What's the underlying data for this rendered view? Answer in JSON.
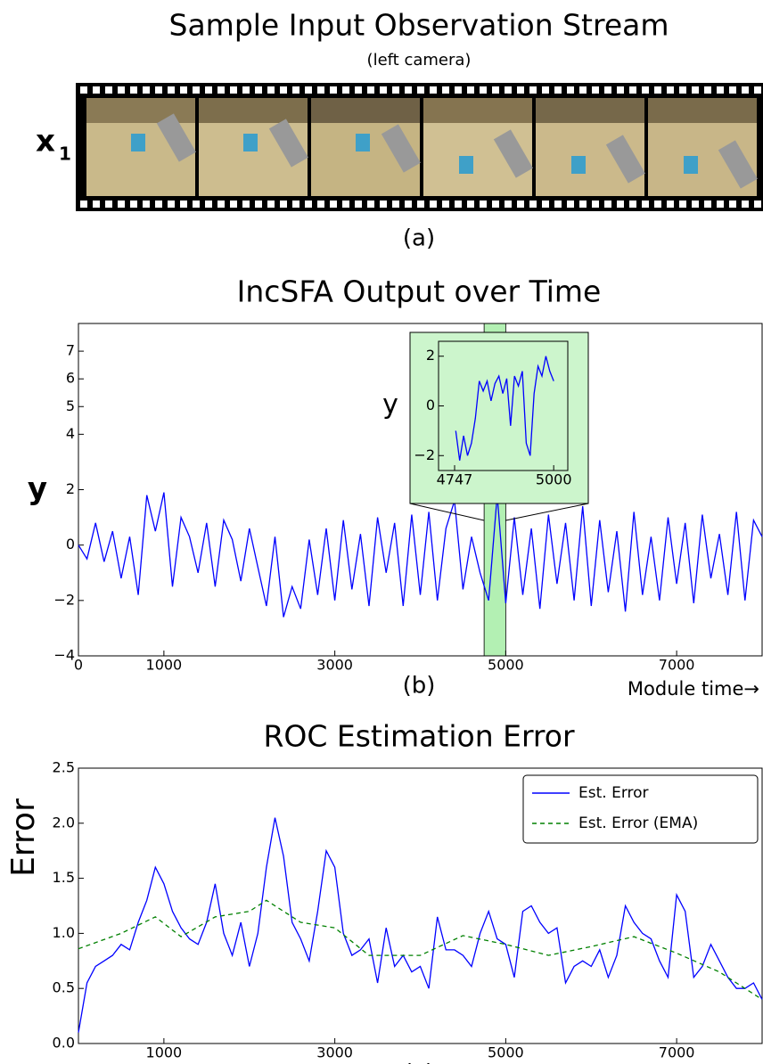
{
  "panel_a": {
    "title": "Sample Input Observation Stream",
    "subtitle": "(left camera)",
    "row_label": "x",
    "row_label_sub": "1",
    "caption": "(a)"
  },
  "chart_data": [
    {
      "type": "line",
      "title": "IncSFA Output over Time",
      "ylabel": "y",
      "xlabel": "Module time→",
      "caption": "(b)",
      "xlim": [
        0,
        8000
      ],
      "ylim": [
        -4,
        8
      ],
      "xticks": [
        0,
        1000,
        3000,
        5000,
        7000
      ],
      "yticks": [
        {
          "value": -4,
          "label": "−4"
        },
        {
          "value": -2,
          "label": "−2"
        },
        0,
        2,
        4,
        5,
        6,
        7
      ],
      "highlight": [
        4747,
        5000
      ],
      "highlight_color": "#b3f0b3",
      "x": [
        0,
        100,
        200,
        300,
        400,
        500,
        600,
        700,
        800,
        900,
        1000,
        1100,
        1200,
        1300,
        1400,
        1500,
        1600,
        1700,
        1800,
        1900,
        2000,
        2100,
        2200,
        2300,
        2400,
        2500,
        2600,
        2700,
        2800,
        2900,
        3000,
        3100,
        3200,
        3300,
        3400,
        3500,
        3600,
        3700,
        3800,
        3900,
        4000,
        4100,
        4200,
        4300,
        4400,
        4500,
        4600,
        4700,
        4800,
        4900,
        5000,
        5100,
        5200,
        5300,
        5400,
        5500,
        5600,
        5700,
        5800,
        5900,
        6000,
        6100,
        6200,
        6300,
        6400,
        6500,
        6600,
        6700,
        6800,
        6900,
        7000,
        7100,
        7200,
        7300,
        7400,
        7500,
        7600,
        7700,
        7800,
        7900,
        8000
      ],
      "series": [
        {
          "color": "#0000ff",
          "values": [
            0,
            -0.5,
            0.8,
            -0.6,
            0.5,
            -1.2,
            0.3,
            -1.8,
            1.8,
            0.5,
            1.9,
            -1.5,
            1.0,
            0.3,
            -1.0,
            0.8,
            -1.5,
            0.9,
            0.2,
            -1.3,
            0.6,
            -0.8,
            -2.2,
            0.3,
            -2.6,
            -1.5,
            -2.3,
            0.2,
            -1.8,
            0.6,
            -2.0,
            0.9,
            -1.6,
            0.4,
            -2.2,
            1.0,
            -1.0,
            0.8,
            -2.2,
            1.1,
            -1.8,
            1.2,
            -2.0,
            0.6,
            1.6,
            -1.6,
            0.3,
            -1.0,
            -2.0,
            1.8,
            -2.1,
            1.0,
            -1.8,
            0.6,
            -2.3,
            1.1,
            -1.4,
            0.8,
            -2.0,
            1.4,
            -2.2,
            0.9,
            -1.7,
            0.5,
            -2.4,
            1.2,
            -1.8,
            0.3,
            -2.0,
            1.0,
            -1.4,
            0.8,
            -2.1,
            1.1,
            -1.2,
            0.4,
            -1.8,
            1.2,
            -2.0,
            0.9,
            0.3
          ]
        }
      ]
    },
    {
      "type": "line",
      "ylabel": "y",
      "xlim": [
        4706,
        5036
      ],
      "ylim": [
        -2.6,
        2.6
      ],
      "xticks": [
        4747,
        5000
      ],
      "yticks": [
        {
          "value": -2,
          "label": "−2"
        },
        0,
        2
      ],
      "x": [
        4750,
        4760,
        4770,
        4780,
        4790,
        4800,
        4810,
        4820,
        4830,
        4840,
        4850,
        4860,
        4870,
        4880,
        4890,
        4900,
        4910,
        4920,
        4930,
        4940,
        4950,
        4960,
        4970,
        4980,
        4990,
        5000
      ],
      "series": [
        {
          "color": "#0000ff",
          "values": [
            -1.0,
            -2.2,
            -1.2,
            -2.0,
            -1.5,
            -0.5,
            1.0,
            0.6,
            1.0,
            0.2,
            0.9,
            1.2,
            0.5,
            1.1,
            -0.8,
            1.2,
            0.8,
            1.4,
            -1.5,
            -2.0,
            0.5,
            1.6,
            1.2,
            2.0,
            1.4,
            1.0
          ]
        }
      ]
    },
    {
      "type": "line",
      "title": "ROC Estimation Error",
      "ylabel": "Error",
      "xlabel": "Module time→",
      "caption": "(c)",
      "xlim": [
        0,
        8000
      ],
      "ylim": [
        0,
        2.5
      ],
      "xticks": [
        1000,
        3000,
        5000,
        7000
      ],
      "yticks": [
        {
          "value": 0,
          "label": "0.0"
        },
        0.5,
        {
          "value": 1,
          "label": "1.0"
        },
        1.5,
        {
          "value": 2,
          "label": "2.0"
        },
        2.5
      ],
      "legend": "upper right",
      "series": [
        {
          "name": "Est. Error",
          "color": "#0000ff",
          "dash": false,
          "x": [
            0,
            100,
            200,
            300,
            400,
            500,
            600,
            700,
            800,
            900,
            1000,
            1100,
            1200,
            1300,
            1400,
            1500,
            1600,
            1700,
            1800,
            1900,
            2000,
            2100,
            2200,
            2300,
            2400,
            2500,
            2600,
            2700,
            2800,
            2900,
            3000,
            3100,
            3200,
            3300,
            3400,
            3500,
            3600,
            3700,
            3800,
            3900,
            4000,
            4100,
            4200,
            4300,
            4400,
            4500,
            4600,
            4700,
            4800,
            4900,
            5000,
            5100,
            5200,
            5300,
            5400,
            5500,
            5600,
            5700,
            5800,
            5900,
            6000,
            6100,
            6200,
            6300,
            6400,
            6500,
            6600,
            6700,
            6800,
            6900,
            7000,
            7100,
            7200,
            7300,
            7400,
            7500,
            7600,
            7700,
            7800,
            7900,
            8000
          ],
          "values": [
            0.1,
            0.55,
            0.7,
            0.75,
            0.8,
            0.9,
            0.85,
            1.1,
            1.3,
            1.6,
            1.45,
            1.2,
            1.05,
            0.95,
            0.9,
            1.1,
            1.45,
            1.0,
            0.8,
            1.1,
            0.7,
            1.0,
            1.6,
            2.05,
            1.7,
            1.1,
            0.95,
            0.75,
            1.2,
            1.75,
            1.6,
            1.0,
            0.8,
            0.85,
            0.95,
            0.55,
            1.05,
            0.7,
            0.8,
            0.65,
            0.7,
            0.5,
            1.15,
            0.85,
            0.85,
            0.8,
            0.7,
            1.0,
            1.2,
            0.95,
            0.9,
            0.6,
            1.2,
            1.25,
            1.1,
            1.0,
            1.05,
            0.55,
            0.7,
            0.75,
            0.7,
            0.85,
            0.6,
            0.8,
            1.25,
            1.1,
            1.0,
            0.95,
            0.75,
            0.6,
            1.35,
            1.2,
            0.6,
            0.7,
            0.9,
            0.75,
            0.6,
            0.5,
            0.5,
            0.55,
            0.4
          ]
        },
        {
          "name": "Est. Error (EMA)",
          "color": "#008000",
          "dash": true,
          "x": [
            0,
            500,
            900,
            1200,
            1600,
            2000,
            2200,
            2600,
            3000,
            3400,
            4000,
            4500,
            5000,
            5500,
            6000,
            6500,
            7000,
            7500,
            8000
          ],
          "values": [
            0.86,
            1.0,
            1.15,
            0.97,
            1.15,
            1.2,
            1.3,
            1.1,
            1.05,
            0.8,
            0.8,
            0.98,
            0.9,
            0.8,
            0.88,
            0.97,
            0.82,
            0.65,
            0.4
          ]
        }
      ]
    }
  ]
}
